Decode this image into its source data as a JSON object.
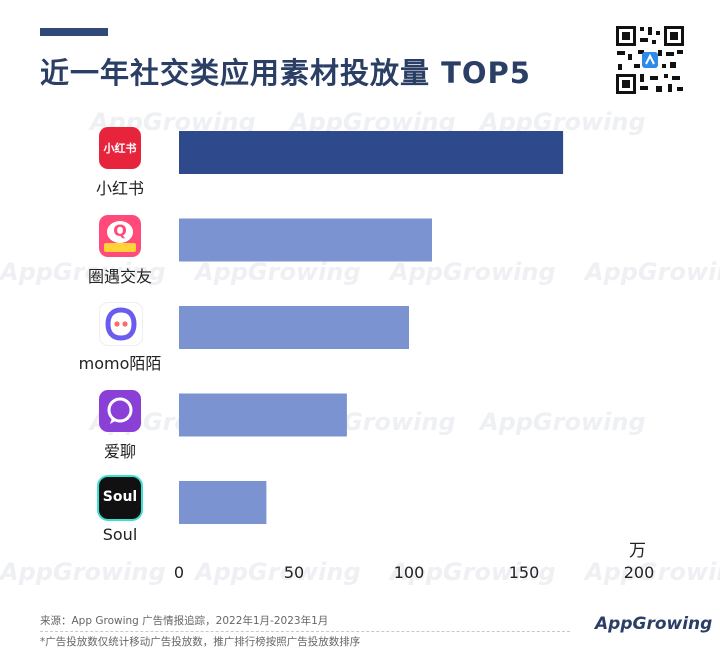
{
  "title": "近一年社交类应用素材投放量 TOP5",
  "unit": "万",
  "footer": {
    "source": "来源：App Growing 广告情报追踪，2022年1月-2023年1月",
    "note": "*广告投放数仅统计移动广告投放数，推广排行榜按照广告投放数排序",
    "brand": "AppGrowing"
  },
  "watermark_text": "AppGrowing",
  "icons": [
    {
      "name": "xiaohongshu-icon",
      "bg": "#e8243c",
      "glyph": "小红书"
    },
    {
      "name": "quanyu-icon",
      "bg": "#ff4a7a",
      "glyph": "Q"
    },
    {
      "name": "momo-icon",
      "bg": "#ffffff",
      "glyph": ""
    },
    {
      "name": "ailiao-icon",
      "bg": "#8a3fd6",
      "glyph": ""
    },
    {
      "name": "soul-icon",
      "bg": "#111111",
      "glyph": "Soul"
    }
  ],
  "chart_data": {
    "type": "bar",
    "orientation": "horizontal",
    "categories": [
      "小红书",
      "圈遇交友",
      "momo陌陌",
      "爱聊",
      "Soul"
    ],
    "values": [
      167,
      110,
      100,
      73,
      38
    ],
    "xlim": [
      0,
      200
    ],
    "xticks": [
      0,
      50,
      100,
      150,
      200
    ],
    "colors": [
      "#2f4a8c",
      "#7b93d1",
      "#7b93d1",
      "#7b93d1",
      "#7b93d1"
    ],
    "grid": false,
    "legend": "none"
  }
}
